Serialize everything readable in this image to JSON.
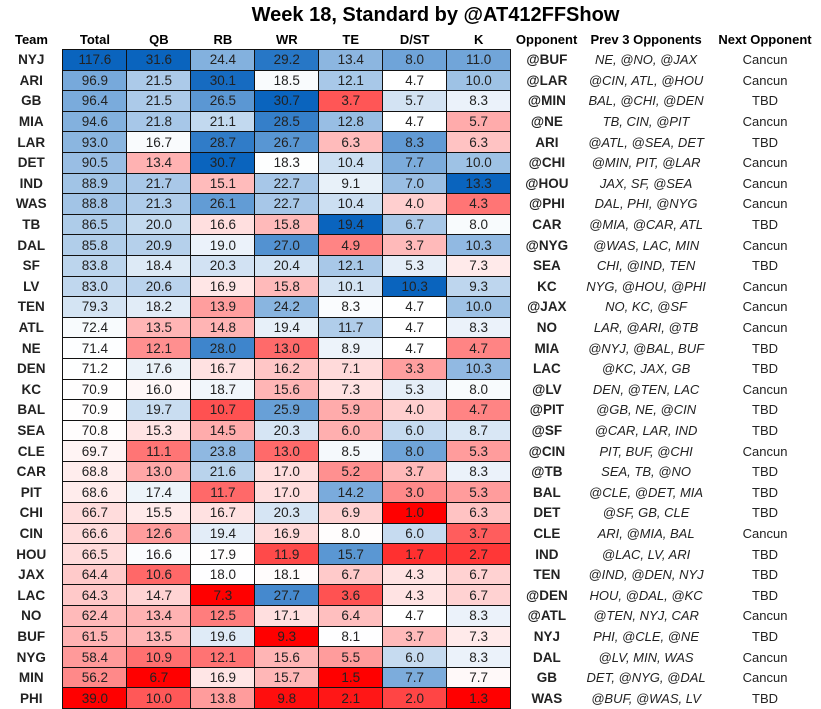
{
  "title": "Week 18, Standard by @AT412FFShow",
  "chart_data": {
    "type": "heatmap",
    "title": "Week 18, Standard by @AT412FFShow",
    "columns": [
      "Team",
      "Total",
      "QB",
      "RB",
      "WR",
      "TE",
      "D/ST",
      "K",
      "Opponent",
      "Prev  3 Opponents",
      "Next Opponent"
    ],
    "color_scale": {
      "low": "#FF0000",
      "mid": "#FFFFFF",
      "high": "#0A64BE",
      "scope": "per-column"
    },
    "rows": [
      [
        "NYJ",
        117.6,
        31.6,
        24.4,
        29.2,
        13.4,
        8.0,
        11.0,
        "@BUF",
        "NE, @NO, @JAX",
        "Cancun"
      ],
      [
        "ARI",
        96.9,
        21.5,
        30.1,
        18.5,
        12.1,
        4.7,
        10.0,
        "@LAR",
        "@CIN, ATL, @HOU",
        "Cancun"
      ],
      [
        "GB",
        96.4,
        21.5,
        26.5,
        30.7,
        3.7,
        5.7,
        8.3,
        "@MIN",
        "BAL, @CHI, @DEN",
        "TBD"
      ],
      [
        "MIA",
        94.6,
        21.8,
        21.1,
        28.5,
        12.8,
        4.7,
        5.7,
        "@NE",
        "TB, CIN, @PIT",
        "Cancun"
      ],
      [
        "LAR",
        93.0,
        16.7,
        28.7,
        26.7,
        6.3,
        8.3,
        6.3,
        "ARI",
        "@ATL, @SEA, DET",
        "TBD"
      ],
      [
        "DET",
        90.5,
        13.4,
        30.7,
        18.3,
        10.4,
        7.7,
        10.0,
        "@CHI",
        "@MIN, PIT, @LAR",
        "Cancun"
      ],
      [
        "IND",
        88.9,
        21.7,
        15.1,
        22.7,
        9.1,
        7.0,
        13.3,
        "@HOU",
        "JAX, SF, @SEA",
        "Cancun"
      ],
      [
        "WAS",
        88.8,
        21.3,
        26.1,
        22.7,
        10.4,
        4.0,
        4.3,
        "@PHI",
        "DAL, PHI, @NYG",
        "Cancun"
      ],
      [
        "TB",
        86.5,
        20.0,
        16.6,
        15.8,
        19.4,
        6.7,
        8.0,
        "CAR",
        "@MIA, @CAR, ATL",
        "TBD"
      ],
      [
        "DAL",
        85.8,
        20.9,
        19.0,
        27.0,
        4.9,
        3.7,
        10.3,
        "@NYG",
        "@WAS, LAC, MIN",
        "Cancun"
      ],
      [
        "SF",
        83.8,
        18.4,
        20.3,
        20.4,
        12.1,
        5.3,
        7.3,
        "SEA",
        "CHI, @IND, TEN",
        "TBD"
      ],
      [
        "LV",
        83.0,
        20.6,
        16.9,
        15.8,
        10.1,
        10.3,
        9.3,
        "KC",
        "NYG, @HOU, @PHI",
        "Cancun"
      ],
      [
        "TEN",
        79.3,
        18.2,
        13.9,
        24.2,
        8.3,
        4.7,
        10.0,
        "@JAX",
        "NO, KC, @SF",
        "Cancun"
      ],
      [
        "ATL",
        72.4,
        13.5,
        14.8,
        19.4,
        11.7,
        4.7,
        8.3,
        "NO",
        "LAR, @ARI, @TB",
        "Cancun"
      ],
      [
        "NE",
        71.4,
        12.1,
        28.0,
        13.0,
        8.9,
        4.7,
        4.7,
        "MIA",
        "@NYJ, @BAL, BUF",
        "TBD"
      ],
      [
        "DEN",
        71.2,
        17.6,
        16.7,
        16.2,
        7.1,
        3.3,
        10.3,
        "LAC",
        "@KC, JAX, GB",
        "TBD"
      ],
      [
        "KC",
        70.9,
        16.0,
        18.7,
        15.6,
        7.3,
        5.3,
        8.0,
        "@LV",
        "DEN, @TEN, LAC",
        "Cancun"
      ],
      [
        "BAL",
        70.9,
        19.7,
        10.7,
        25.9,
        5.9,
        4.0,
        4.7,
        "@PIT",
        "@GB, NE, @CIN",
        "TBD"
      ],
      [
        "SEA",
        70.8,
        15.3,
        14.5,
        20.3,
        6.0,
        6.0,
        8.7,
        "@SF",
        "@CAR, LAR, IND",
        "TBD"
      ],
      [
        "CLE",
        69.7,
        11.1,
        23.8,
        13.0,
        8.5,
        8.0,
        5.3,
        "@CIN",
        "PIT, BUF, @CHI",
        "Cancun"
      ],
      [
        "CAR",
        68.8,
        13.0,
        21.6,
        17.0,
        5.2,
        3.7,
        8.3,
        "@TB",
        "SEA, TB, @NO",
        "TBD"
      ],
      [
        "PIT",
        68.6,
        17.4,
        11.7,
        17.0,
        14.2,
        3.0,
        5.3,
        "BAL",
        "@CLE, @DET, MIA",
        "TBD"
      ],
      [
        "CHI",
        66.7,
        15.5,
        16.7,
        20.3,
        6.9,
        1.0,
        6.3,
        "DET",
        "@SF, GB, CLE",
        "TBD"
      ],
      [
        "CIN",
        66.6,
        12.6,
        19.4,
        16.9,
        8.0,
        6.0,
        3.7,
        "CLE",
        "ARI, @MIA, BAL",
        "Cancun"
      ],
      [
        "HOU",
        66.5,
        16.6,
        17.9,
        11.9,
        15.7,
        1.7,
        2.7,
        "IND",
        "@LAC, LV, ARI",
        "TBD"
      ],
      [
        "JAX",
        64.4,
        10.6,
        18.0,
        18.1,
        6.7,
        4.3,
        6.7,
        "TEN",
        "@IND, @DEN, NYJ",
        "TBD"
      ],
      [
        "LAC",
        64.3,
        14.7,
        7.3,
        27.7,
        3.6,
        4.3,
        6.7,
        "@DEN",
        "HOU, @DAL, @KC",
        "TBD"
      ],
      [
        "NO",
        62.4,
        13.4,
        12.5,
        17.1,
        6.4,
        4.7,
        8.3,
        "@ATL",
        "@TEN, NYJ, CAR",
        "Cancun"
      ],
      [
        "BUF",
        61.5,
        13.5,
        19.6,
        9.3,
        8.1,
        3.7,
        7.3,
        "NYJ",
        "PHI, @CLE, @NE",
        "TBD"
      ],
      [
        "NYG",
        58.4,
        10.9,
        12.1,
        15.6,
        5.5,
        6.0,
        8.3,
        "DAL",
        "@LV, MIN, WAS",
        "Cancun"
      ],
      [
        "MIN",
        56.2,
        6.7,
        16.9,
        15.7,
        1.5,
        7.7,
        7.7,
        "GB",
        "DET, @NYG, @DAL",
        "Cancun"
      ],
      [
        "PHI",
        39.0,
        10.0,
        13.8,
        9.8,
        2.1,
        2.0,
        1.3,
        "WAS",
        "@BUF, @WAS, LV",
        "TBD"
      ]
    ]
  }
}
